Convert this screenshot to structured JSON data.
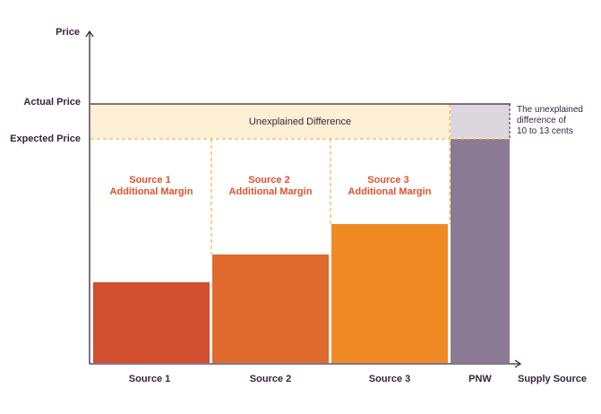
{
  "axes": {
    "y_label": "Price",
    "x_label": "Supply Source"
  },
  "price_levels": {
    "actual": "Actual Price",
    "expected": "Expected Price"
  },
  "band_label": "Unexplained Difference",
  "note_lines": [
    "The unexplained",
    "difference of",
    "10 to 13 cents"
  ],
  "sources": [
    {
      "name": "Source 1",
      "margin_lines": [
        "Source 1",
        "Additional Margin"
      ]
    },
    {
      "name": "Source 2",
      "margin_lines": [
        "Source 2",
        "Additional Margin"
      ]
    },
    {
      "name": "Source 3",
      "margin_lines": [
        "Source 3",
        "Additional Margin"
      ]
    },
    {
      "name": "PNW",
      "margin_lines": []
    }
  ],
  "colors": {
    "axis": "#3a2340",
    "text": "#3a2340",
    "band_fill": "#fdf0d4",
    "dash": "#f0b33c",
    "margin_text": "#d9532b",
    "source1": "#d14e2e",
    "source2": "#e06a2e",
    "source3": "#f08a24",
    "pnw": "#8b7a93",
    "pnw_gap": "#dcd6df"
  }
}
